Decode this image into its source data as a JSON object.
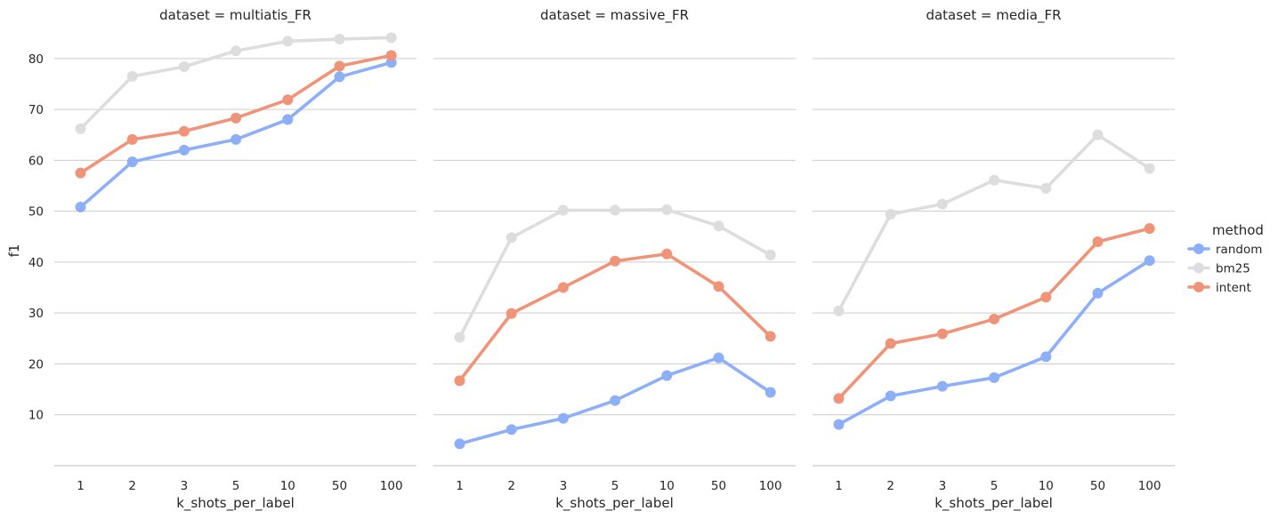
{
  "chart_data": {
    "type": "line",
    "categories": [
      "1",
      "2",
      "3",
      "5",
      "10",
      "50",
      "100"
    ],
    "xlabel": "k_shots_per_label",
    "ylabel": "f1",
    "ylim": [
      0,
      88
    ],
    "yticks": [
      10,
      20,
      30,
      40,
      50,
      60,
      70,
      80
    ],
    "grid": "horizontal",
    "legend": {
      "title": "method",
      "placement": "right",
      "entries": [
        "random",
        "bm25",
        "intent"
      ]
    },
    "colors": {
      "random": "#8caff7",
      "bm25": "#dddddd",
      "intent": "#f09479"
    },
    "panels": [
      {
        "title": "dataset = multiatis_FR",
        "series": [
          {
            "name": "random",
            "values": [
              50.8,
              59.7,
              62.0,
              64.1,
              68.0,
              76.4,
              79.2
            ]
          },
          {
            "name": "bm25",
            "values": [
              66.2,
              76.5,
              78.4,
              81.5,
              83.4,
              83.8,
              84.1
            ]
          },
          {
            "name": "intent",
            "values": [
              57.5,
              64.1,
              65.7,
              68.3,
              71.9,
              78.5,
              80.6
            ]
          }
        ]
      },
      {
        "title": "dataset = massive_FR",
        "series": [
          {
            "name": "random",
            "values": [
              4.3,
              7.1,
              9.3,
              12.8,
              17.7,
              21.2,
              14.4
            ]
          },
          {
            "name": "bm25",
            "values": [
              25.2,
              44.8,
              50.2,
              50.2,
              50.3,
              47.1,
              41.4
            ]
          },
          {
            "name": "intent",
            "values": [
              16.7,
              29.9,
              35.0,
              40.2,
              41.6,
              35.2,
              25.4
            ]
          }
        ]
      },
      {
        "title": "dataset = media_FR",
        "series": [
          {
            "name": "random",
            "values": [
              8.1,
              13.7,
              15.6,
              17.3,
              21.4,
              33.9,
              40.3
            ]
          },
          {
            "name": "bm25",
            "values": [
              30.4,
              49.4,
              51.4,
              56.1,
              54.5,
              65.0,
              58.4
            ]
          },
          {
            "name": "intent",
            "values": [
              13.2,
              24.0,
              25.9,
              28.8,
              33.1,
              44.0,
              46.6
            ]
          }
        ]
      }
    ]
  }
}
